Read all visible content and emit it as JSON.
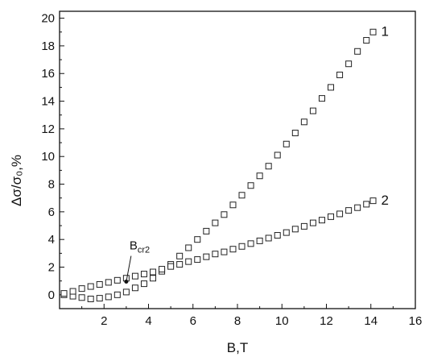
{
  "chart_data": {
    "type": "scatter",
    "xlabel": "B,T",
    "ylabel": "Δσ/σ₀,%",
    "xlim": [
      0,
      16
    ],
    "ylim": [
      -1,
      20.5
    ],
    "grid": false,
    "x_ticks": [
      2,
      4,
      6,
      8,
      10,
      12,
      14,
      16
    ],
    "y_ticks": [
      0,
      2,
      4,
      6,
      8,
      10,
      12,
      14,
      16,
      18,
      20
    ],
    "x_tick_labels": [
      "2",
      "4",
      "6",
      "8",
      "10",
      "12",
      "14",
      "16"
    ],
    "y_tick_labels": [
      "0",
      "2",
      "4",
      "6",
      "8",
      "10",
      "12",
      "14",
      "16",
      "18",
      "20"
    ],
    "series": [
      {
        "name": "1",
        "x": [
          0.2,
          0.6,
          1.0,
          1.4,
          1.8,
          2.2,
          2.6,
          3.0,
          3.4,
          3.8,
          4.2,
          4.6,
          5.0,
          5.4,
          5.8,
          6.2,
          6.6,
          7.0,
          7.4,
          7.8,
          8.2,
          8.6,
          9.0,
          9.4,
          9.8,
          10.2,
          10.6,
          11.0,
          11.4,
          11.8,
          12.2,
          12.6,
          13.0,
          13.4,
          13.8,
          14.1
        ],
        "y": [
          0.0,
          -0.1,
          -0.2,
          -0.3,
          -0.25,
          -0.15,
          0.0,
          0.2,
          0.5,
          0.8,
          1.2,
          1.7,
          2.2,
          2.8,
          3.4,
          4.0,
          4.6,
          5.2,
          5.8,
          6.5,
          7.2,
          7.9,
          8.6,
          9.3,
          10.1,
          10.9,
          11.7,
          12.5,
          13.3,
          14.2,
          15.0,
          15.9,
          16.7,
          17.6,
          18.4,
          19.0
        ]
      },
      {
        "name": "2",
        "x": [
          0.2,
          0.6,
          1.0,
          1.4,
          1.8,
          2.2,
          2.6,
          3.0,
          3.4,
          3.8,
          4.2,
          4.6,
          5.0,
          5.4,
          5.8,
          6.2,
          6.6,
          7.0,
          7.4,
          7.8,
          8.2,
          8.6,
          9.0,
          9.4,
          9.8,
          10.2,
          10.6,
          11.0,
          11.4,
          11.8,
          12.2,
          12.6,
          13.0,
          13.4,
          13.8,
          14.1
        ],
        "y": [
          0.1,
          0.25,
          0.45,
          0.6,
          0.75,
          0.9,
          1.05,
          1.2,
          1.35,
          1.5,
          1.65,
          1.85,
          2.05,
          2.2,
          2.4,
          2.55,
          2.75,
          2.95,
          3.1,
          3.3,
          3.5,
          3.7,
          3.9,
          4.1,
          4.3,
          4.5,
          4.75,
          4.95,
          5.2,
          5.4,
          5.65,
          5.85,
          6.1,
          6.3,
          6.55,
          6.8
        ]
      }
    ],
    "annotations": [
      {
        "text": "B",
        "subscript": "cr2",
        "x": 3.0,
        "y": 0.95
      }
    ]
  }
}
